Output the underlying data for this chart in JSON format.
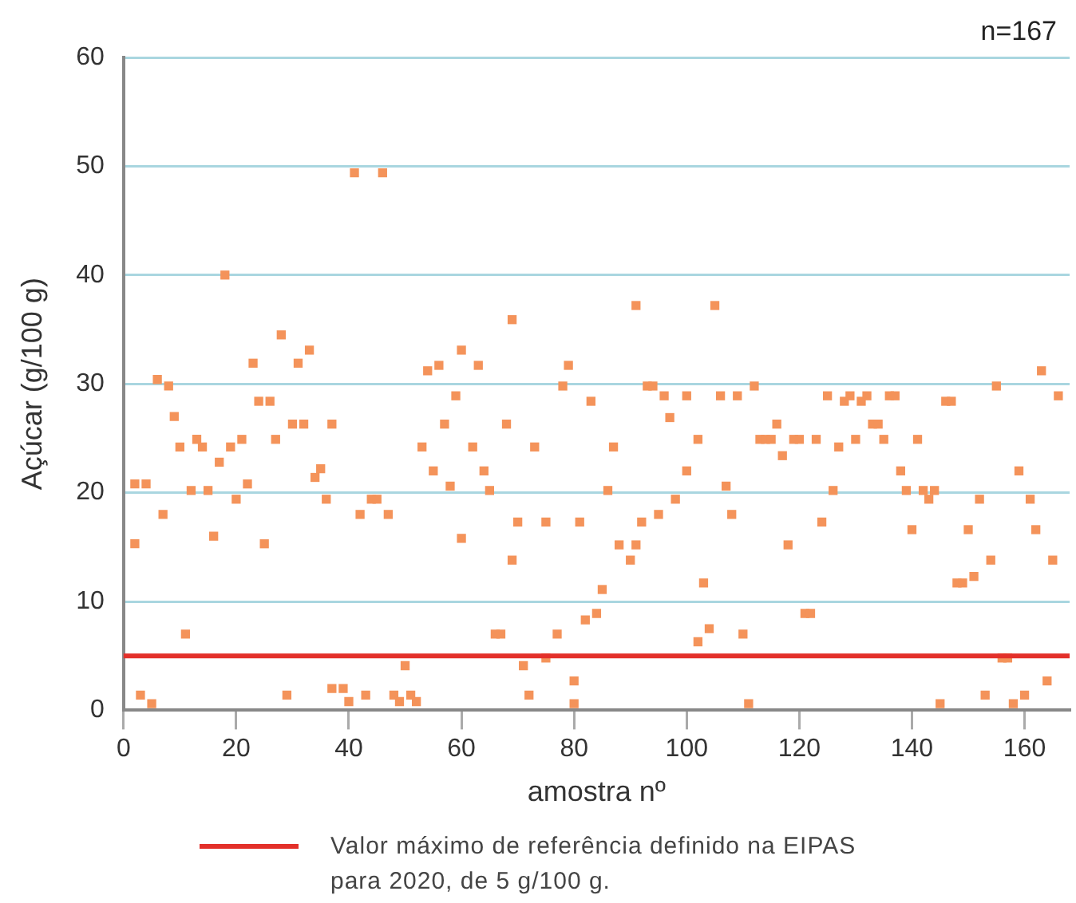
{
  "chart_data": {
    "type": "scatter",
    "xlabel": "amostra nº",
    "ylabel": "Açúcar (g/100 g)",
    "annotations": [
      "n=167"
    ],
    "xlim": [
      0,
      168
    ],
    "xticks": [
      0,
      20,
      40,
      60,
      80,
      100,
      120,
      140,
      160
    ],
    "ylim": [
      0,
      60
    ],
    "yticks": [
      0,
      10,
      20,
      30,
      40,
      50,
      60
    ],
    "grid": "y",
    "legend": "bottom",
    "marker": "square",
    "ref_lines": [
      {
        "axis": "y",
        "value": 5,
        "label": "Valor máximo de referência definido na EIPAS para 2020, de 5 g/100 g.",
        "color": "#e3302a"
      }
    ],
    "series": [
      {
        "color": "#f4935a",
        "x": [
          2,
          2,
          3,
          4,
          5,
          6,
          7,
          8,
          9,
          10,
          11,
          12,
          13,
          14,
          15,
          16,
          17,
          18,
          19,
          20,
          21,
          22,
          23,
          24,
          25,
          26,
          27,
          28,
          29,
          30,
          31,
          32,
          33,
          34,
          35,
          36,
          37,
          37,
          39,
          40,
          41,
          42,
          43,
          44,
          45,
          46,
          47,
          48,
          49,
          50,
          51,
          52,
          53,
          54,
          55,
          56,
          57,
          58,
          59,
          60,
          60,
          62,
          63,
          64,
          65,
          66,
          67,
          68,
          69,
          69,
          70,
          71,
          72,
          73,
          75,
          75,
          77,
          78,
          79,
          80,
          80,
          81,
          82,
          83,
          84,
          85,
          86,
          87,
          88,
          90,
          91,
          91,
          92,
          93,
          94,
          95,
          96,
          97,
          98,
          100,
          100,
          102,
          102,
          103,
          104,
          105,
          106,
          107,
          108,
          109,
          110,
          111,
          112,
          113,
          114,
          115,
          116,
          117,
          118,
          119,
          120,
          121,
          122,
          123,
          124,
          125,
          126,
          127,
          128,
          129,
          130,
          131,
          132,
          133,
          134,
          135,
          136,
          137,
          138,
          139,
          140,
          141,
          142,
          143,
          144,
          145,
          146,
          147,
          148,
          149,
          150,
          151,
          152,
          153,
          154,
          155,
          156,
          157,
          158,
          159,
          160,
          161,
          162,
          163,
          164,
          165,
          166
        ],
        "values": [
          15.3,
          20.8,
          1.4,
          20.8,
          0.6,
          30.4,
          18,
          29.8,
          27,
          24.2,
          7,
          20.2,
          24.9,
          24.2,
          20.2,
          16,
          22.8,
          40,
          24.2,
          19.4,
          24.9,
          20.8,
          31.9,
          28.4,
          15.3,
          28.4,
          24.9,
          34.5,
          1.4,
          26.3,
          31.9,
          26.3,
          33.1,
          21.4,
          22.2,
          19.4,
          26.3,
          2,
          2,
          0.8,
          49.4,
          18,
          1.4,
          19.4,
          19.4,
          49.4,
          18,
          1.4,
          0.8,
          4.1,
          1.4,
          0.8,
          24.2,
          31.2,
          22,
          31.7,
          26.3,
          20.6,
          28.9,
          33.1,
          15.8,
          24.2,
          31.7,
          22,
          20.2,
          7,
          7,
          26.3,
          35.9,
          13.8,
          17.3,
          4.1,
          1.4,
          24.2,
          4.8,
          17.3,
          7,
          29.8,
          31.7,
          2.7,
          0.6,
          17.3,
          8.3,
          28.4,
          8.9,
          11.1,
          20.2,
          24.2,
          15.2,
          13.8,
          15.2,
          37.2,
          17.3,
          29.8,
          29.8,
          18,
          28.9,
          26.9,
          19.4,
          28.9,
          22,
          6.3,
          24.9,
          11.7,
          7.5,
          37.2,
          28.9,
          20.6,
          18,
          28.9,
          7,
          0.6,
          29.8,
          24.9,
          24.9,
          24.9,
          26.3,
          23.4,
          15.2,
          24.9,
          24.9,
          8.9,
          8.9,
          24.9,
          17.3,
          28.9,
          20.2,
          24.2,
          28.4,
          28.9,
          24.9,
          28.4,
          28.9,
          26.3,
          26.3,
          24.9,
          28.9,
          28.9,
          22,
          20.2,
          16.6,
          24.9,
          20.2,
          19.4,
          20.2,
          0.6,
          28.4,
          28.4,
          11.7,
          11.7,
          16.6,
          12.3,
          19.4,
          1.4,
          13.8,
          29.8,
          4.8,
          4.8,
          0.6,
          22,
          1.4,
          19.4,
          16.6,
          31.2,
          2.7,
          13.8,
          28.9
        ]
      }
    ]
  }
}
